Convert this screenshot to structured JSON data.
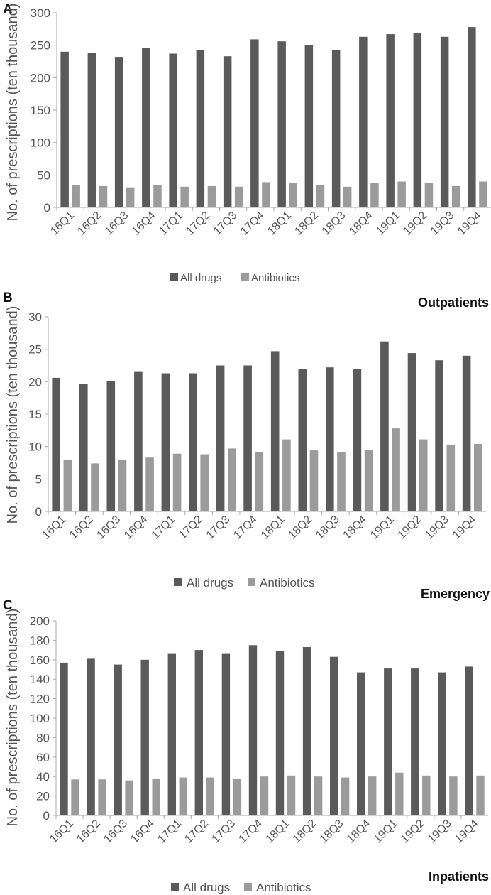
{
  "colors": {
    "all_drugs": "#5a5a5a",
    "antibiotics": "#9b9b9b",
    "axis": "#a8a8a8",
    "grid": "#d9d9d9",
    "text": "#555555"
  },
  "chart_data": [
    {
      "panel_label": "A",
      "type": "bar",
      "title": "",
      "ylabel": "No. of prescriptions (ten thousand)",
      "xlabel": "",
      "ylim": [
        0,
        300
      ],
      "yticks": [
        0,
        50,
        100,
        150,
        200,
        250,
        300
      ],
      "categories": [
        "16Q1",
        "16Q2",
        "16Q3",
        "16Q4",
        "17Q1",
        "17Q2",
        "17Q3",
        "17Q4",
        "18Q1",
        "18Q2",
        "18Q3",
        "18Q4",
        "19Q1",
        "19Q2",
        "19Q3",
        "19Q4"
      ],
      "series": [
        {
          "name": "All drugs",
          "values": [
            240,
            238,
            232,
            246,
            237,
            243,
            233,
            259,
            256,
            250,
            243,
            263,
            267,
            269,
            263,
            278
          ]
        },
        {
          "name": "Antibiotics",
          "values": [
            35,
            33,
            31,
            35,
            32,
            33,
            32,
            39,
            38,
            34,
            32,
            38,
            40,
            38,
            33,
            40
          ]
        }
      ],
      "legend": [
        "All drugs",
        "Antibiotics"
      ],
      "legend_position": "bottom"
    },
    {
      "panel_label": "B",
      "type": "bar",
      "title": "Outpatients",
      "ylabel": "No. of prescriptions (ten thousand)",
      "xlabel": "",
      "ylim": [
        0,
        30
      ],
      "yticks": [
        0,
        5,
        10,
        15,
        20,
        25,
        30
      ],
      "categories": [
        "16Q1",
        "16Q2",
        "16Q3",
        "16Q4",
        "17Q1",
        "17Q2",
        "17Q3",
        "17Q4",
        "18Q1",
        "18Q2",
        "18Q3",
        "18Q4",
        "19Q1",
        "19Q2",
        "19Q3",
        "19Q4"
      ],
      "series": [
        {
          "name": "All drugs",
          "values": [
            20.6,
            19.6,
            20.1,
            21.5,
            21.3,
            21.3,
            22.5,
            22.5,
            24.7,
            21.9,
            22.2,
            21.9,
            26.2,
            24.4,
            23.3,
            24.0
          ]
        },
        {
          "name": "Antibiotics",
          "values": [
            8.0,
            7.4,
            7.9,
            8.3,
            8.9,
            8.8,
            9.7,
            9.2,
            11.1,
            9.4,
            9.2,
            9.5,
            12.8,
            11.1,
            10.3,
            10.4
          ]
        }
      ],
      "legend": [
        "All drugs",
        "Antibiotics"
      ],
      "legend_position": "bottom"
    },
    {
      "panel_label": "C",
      "type": "bar",
      "title": "Emergency",
      "footer_title": "Inpatients",
      "ylabel": "No. of prescriptions (ten thousand)",
      "xlabel": "",
      "ylim": [
        0,
        200
      ],
      "yticks": [
        0,
        20,
        40,
        60,
        80,
        100,
        120,
        140,
        160,
        180,
        200
      ],
      "categories": [
        "16Q1",
        "16Q2",
        "16Q3",
        "16Q4",
        "17Q1",
        "17Q2",
        "17Q3",
        "17Q4",
        "18Q1",
        "18Q2",
        "18Q3",
        "18Q4",
        "19Q1",
        "19Q2",
        "19Q3",
        "19Q4"
      ],
      "series": [
        {
          "name": "All drugs",
          "values": [
            157,
            161,
            155,
            160,
            166,
            170,
            166,
            175,
            169,
            173,
            163,
            147,
            151,
            151,
            147,
            153
          ]
        },
        {
          "name": "Antibiotics",
          "values": [
            37,
            37,
            36,
            38,
            39,
            39,
            38,
            40,
            41,
            40,
            39,
            40,
            44,
            41,
            40,
            41
          ]
        }
      ],
      "legend": [
        "All drugs",
        "Antibiotics"
      ],
      "legend_position": "bottom"
    }
  ]
}
